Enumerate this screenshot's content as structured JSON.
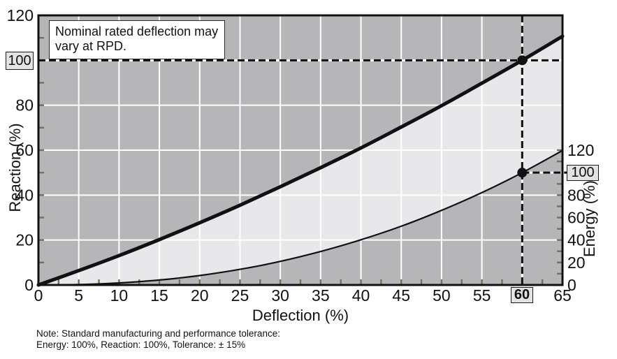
{
  "annotation": {
    "line1": "Nominal rated deflection may",
    "line2": "vary at RPD."
  },
  "note": {
    "line1": "Note: Standard manufacturing and performance tolerance:",
    "line2": "Energy: 100%, Reaction: 100%, Tolerance: ± 15%"
  },
  "callouts": {
    "reaction_value": "100",
    "energy_value": "100",
    "deflection_value": "60"
  },
  "chart_data": {
    "type": "line",
    "title": "",
    "xlabel": "Deflection (%)",
    "ylabel_left": "Reaction (%)",
    "ylabel_right": "Energy (%)",
    "xlim": [
      0,
      65
    ],
    "y_left_lim": [
      0,
      120
    ],
    "y_right_lim": [
      0,
      120
    ],
    "x_major_ticks": [
      0,
      5,
      10,
      15,
      20,
      25,
      30,
      35,
      40,
      45,
      50,
      55,
      60,
      65
    ],
    "x_minor_tick_step": 2.5,
    "y_left_ticks": [
      0,
      20,
      40,
      60,
      80,
      100,
      120
    ],
    "y_left_minor_tick_step": 10,
    "y_right_ticks": [
      0,
      20,
      40,
      60,
      80,
      100,
      120
    ],
    "y_right_minor_tick_step": 10,
    "grid": "white major gridlines on gray plot background",
    "x": [
      0,
      5,
      10,
      15,
      20,
      25,
      30,
      35,
      40,
      45,
      50,
      55,
      60,
      65
    ],
    "series": [
      {
        "name": "Reaction",
        "axis": "left",
        "style": "thick",
        "values": [
          0,
          6.4,
          13.1,
          20.2,
          27.7,
          35.5,
          43.7,
          52.2,
          61.0,
          70.3,
          79.8,
          89.8,
          100,
          110.7
        ]
      },
      {
        "name": "Energy",
        "axis": "right",
        "style": "thin",
        "values": [
          0,
          0.4,
          1.8,
          4.4,
          8.4,
          13.9,
          21.0,
          29.8,
          40.2,
          52.3,
          66.4,
          82.2,
          100,
          119.7
        ]
      }
    ],
    "marked_point": {
      "deflection": 60,
      "reaction": 100,
      "energy": 100
    },
    "colors": {
      "plot_bg": "#b6b6b8",
      "band_between_curves": "#e8e8ea",
      "gridline": "#ffffff",
      "tick": "#7a6f55",
      "line": "#111111",
      "dashed_guide": "#0d0d0d",
      "callout_bg": "#e3e3e3"
    }
  }
}
